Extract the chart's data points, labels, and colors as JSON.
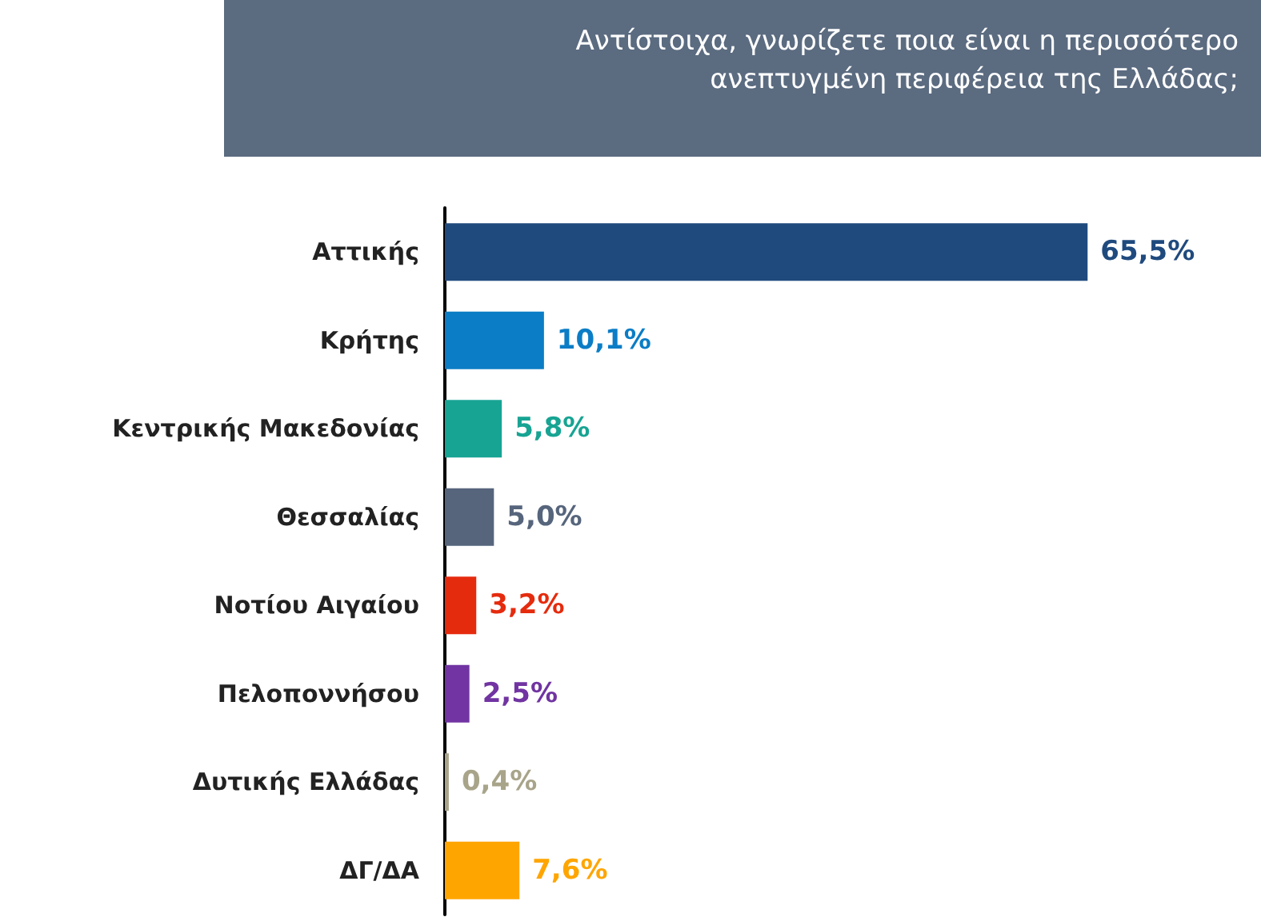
{
  "chart_data": {
    "type": "bar",
    "orientation": "horizontal",
    "title": "Αντίστοιχα, γνωρίζετε ποια είναι η περισσότερο ανεπτυγμένη περιφέρεια της Ελλάδας;",
    "categories": [
      "Αττικής",
      "Κρήτης",
      "Κεντρικής Μακεδονίας",
      "Θεσσαλίας",
      "Νοτίου Αιγαίου",
      "Πελοποννήσου",
      "Δυτικής Ελλάδας",
      "ΔΓ/ΔΑ"
    ],
    "values": [
      65.5,
      10.1,
      5.8,
      5.0,
      3.2,
      2.5,
      0.4,
      7.6
    ],
    "value_labels": [
      "65,5%",
      "10,1%",
      "5,8%",
      "5,0%",
      "3,2%",
      "2,5%",
      "0,4%",
      "7,6%"
    ],
    "colors": [
      "#1f4a7e",
      "#0b7dc6",
      "#17a493",
      "#56657c",
      "#e52b0e",
      "#7134a2",
      "#a8a48a",
      "#ffa500"
    ]
  }
}
